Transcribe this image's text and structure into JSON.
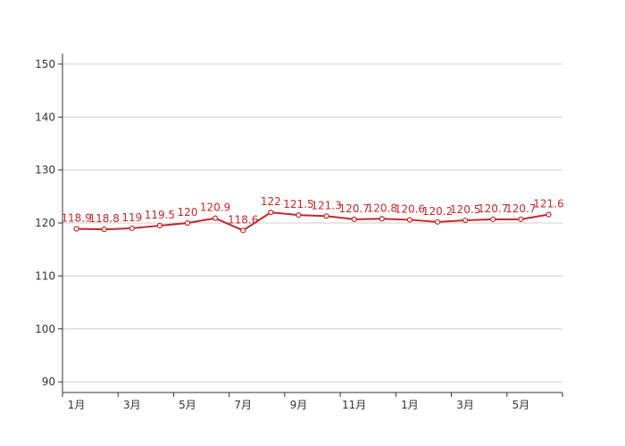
{
  "chart_data": {
    "type": "line",
    "title": "",
    "xlabel": "",
    "ylabel": "",
    "ylim": [
      88,
      152
    ],
    "yticks": [
      90,
      100,
      110,
      120,
      130,
      140,
      150
    ],
    "grid": true,
    "x_labels": [
      "1月",
      "",
      "3月",
      "",
      "5月",
      "",
      "7月",
      "",
      "9月",
      "",
      "11月",
      "",
      "1月",
      "",
      "3月",
      "",
      "5月",
      ""
    ],
    "series": [
      {
        "values": [
          118.9,
          118.8,
          119,
          119.5,
          120,
          120.9,
          118.6,
          122,
          121.5,
          121.3,
          120.7,
          120.8,
          120.6,
          120.2,
          120.5,
          120.7,
          120.7,
          121.6
        ],
        "labels": [
          "118.9",
          "118.8",
          "119",
          "119.5",
          "120",
          "120.9",
          "118.6",
          "122",
          "121.5",
          "121.3",
          "120.7",
          "120.8",
          "120.6",
          "120.2",
          "120.5",
          "120.7",
          "120.7",
          "121.6"
        ],
        "color": "#c0292b"
      }
    ],
    "colors": {
      "line": "#c0292b",
      "grid": "#cccccc",
      "axis": "#333333",
      "marker_fill": "#ffffff"
    }
  }
}
